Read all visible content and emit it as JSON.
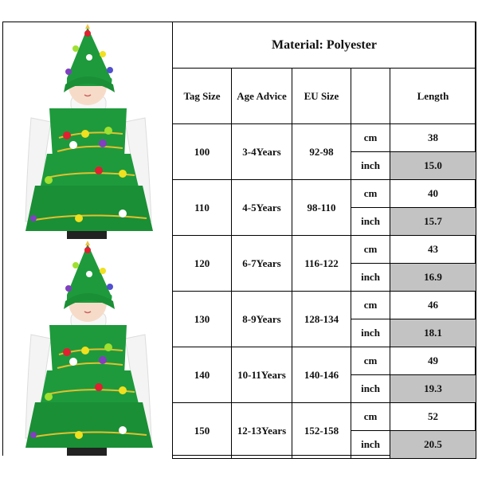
{
  "title": "Material: Polyester",
  "headers": [
    "Tag Size",
    "Age Advice",
    "EU Size",
    "",
    "Length"
  ],
  "units": [
    "cm",
    "inch"
  ],
  "rows": [
    {
      "tag": "100",
      "age": "3-4Years",
      "eu": "92-98",
      "cm": "38",
      "inch": "15.0"
    },
    {
      "tag": "110",
      "age": "4-5Years",
      "eu": "98-110",
      "cm": "40",
      "inch": "15.7"
    },
    {
      "tag": "120",
      "age": "6-7Years",
      "eu": "116-122",
      "cm": "43",
      "inch": "16.9"
    },
    {
      "tag": "130",
      "age": "8-9Years",
      "eu": "128-134",
      "cm": "46",
      "inch": "18.1"
    },
    {
      "tag": "140",
      "age": "10-11Years",
      "eu": "140-146",
      "cm": "49",
      "inch": "19.3"
    },
    {
      "tag": "150",
      "age": "12-13Years",
      "eu": "152-158",
      "cm": "52",
      "inch": "20.5"
    }
  ],
  "colors": {
    "highlight": "#c3c3c3",
    "costume": "#1e9a3c"
  }
}
